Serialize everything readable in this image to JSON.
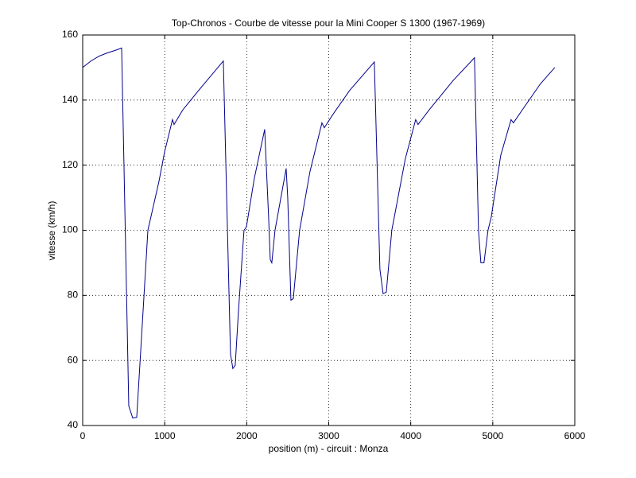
{
  "chart_data": {
    "type": "line",
    "title": "Top-Chronos - Courbe de vitesse pour la Mini Cooper S 1300 (1967-1969)",
    "x_label": "position (m) - circuit : Monza",
    "y_label": "vitesse (km/h)",
    "x": [
      0,
      100,
      200,
      300,
      400,
      475,
      562,
      610,
      659,
      736,
      795,
      930,
      998,
      1095,
      1114,
      1221,
      1415,
      1715,
      1802,
      1831,
      1860,
      1899,
      1967,
      1996,
      2093,
      2219,
      2267,
      2287,
      2306,
      2345,
      2481,
      2500,
      2539,
      2568,
      2645,
      2771,
      2917,
      2946,
      3062,
      3256,
      3556,
      3624,
      3663,
      3702,
      3769,
      3934,
      4060,
      4089,
      4225,
      4516,
      4777,
      4826,
      4855,
      4893,
      4942,
      4981,
      5097,
      5223,
      5252,
      5388,
      5581,
      5756
    ],
    "values": [
      150,
      152,
      153.5,
      154.5,
      155.3,
      156,
      46,
      42.3,
      42.5,
      75,
      100,
      115,
      124,
      134,
      132.5,
      137,
      143,
      152,
      62,
      57.5,
      58.5,
      75,
      100,
      101,
      116,
      131,
      104,
      91,
      90,
      100,
      119,
      110,
      78.5,
      79,
      100,
      118,
      133,
      131.5,
      136,
      143,
      151.7,
      88,
      80.5,
      81,
      100,
      122,
      134,
      132.5,
      137,
      146,
      153,
      100,
      90,
      90,
      100,
      104,
      123,
      134,
      133,
      138,
      145,
      150
    ],
    "color": "#00008b",
    "xlim": [
      0,
      6000
    ],
    "xticks": [
      0,
      1000,
      2000,
      3000,
      4000,
      5000,
      6000
    ],
    "ylim": [
      40,
      160
    ],
    "yticks": [
      40,
      60,
      80,
      100,
      120,
      140,
      160
    ],
    "grid": true
  }
}
